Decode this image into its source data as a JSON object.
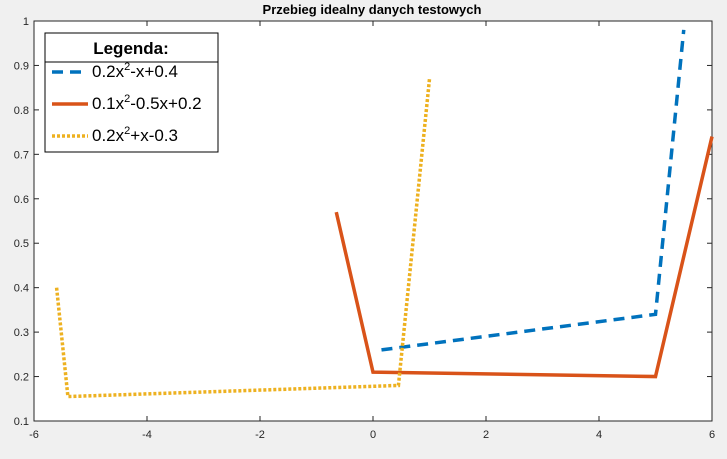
{
  "chart_data": {
    "type": "line",
    "title": "Przebieg idealny danych testowych",
    "xlabel": "",
    "ylabel": "",
    "xlim": [
      -6,
      6
    ],
    "ylim": [
      0.1,
      1
    ],
    "xticks": [
      -6,
      -4,
      -2,
      0,
      2,
      4,
      6
    ],
    "yticks": [
      0.1,
      0.2,
      0.3,
      0.4,
      0.5,
      0.6,
      0.7,
      0.8,
      0.9,
      1
    ],
    "grid": false,
    "legend": {
      "title": "Legenda:",
      "placement": "top-left"
    },
    "series": [
      {
        "name": "0.2x^2-x+0.4",
        "label_parts": [
          "0.2x",
          "2",
          "-x+0.4"
        ],
        "color": "#0072BD",
        "style": "dashed",
        "points": [
          [
            0.15,
            0.26
          ],
          [
            5.0,
            0.34
          ],
          [
            5.5,
            0.98
          ]
        ]
      },
      {
        "name": "0.1x^2-0.5x+0.2",
        "label_parts": [
          "0.1x",
          "2",
          "-0.5x+0.2"
        ],
        "color": "#D95319",
        "style": "solid",
        "points": [
          [
            -0.65,
            0.57
          ],
          [
            0.0,
            0.21
          ],
          [
            5.0,
            0.2
          ],
          [
            6.0,
            0.74
          ]
        ]
      },
      {
        "name": "0.2x^2+x-0.3",
        "label_parts": [
          "0.2x",
          "2",
          "+x-0.3"
        ],
        "color": "#EDB120",
        "style": "dotted",
        "points": [
          [
            -5.6,
            0.4
          ],
          [
            -5.4,
            0.155
          ],
          [
            0.45,
            0.18
          ],
          [
            1.0,
            0.87
          ]
        ]
      }
    ]
  }
}
